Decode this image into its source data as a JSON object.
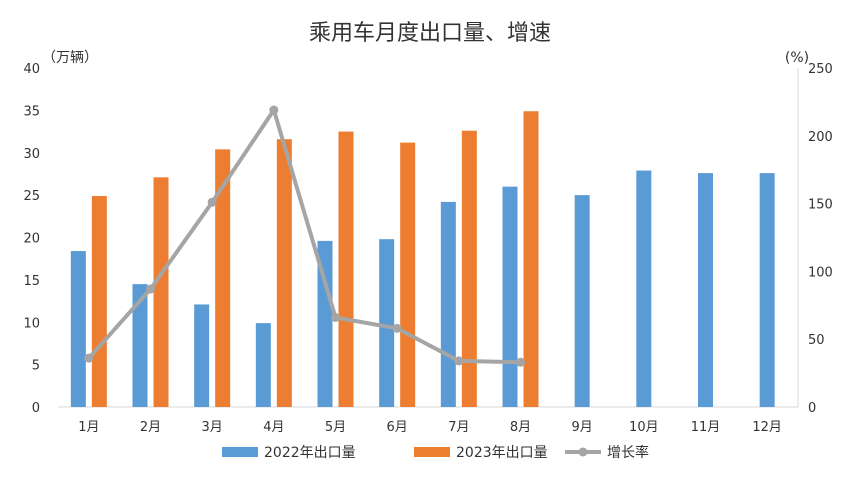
{
  "chart_data": {
    "type": "bar",
    "title": "乘用车月度出口量、增速",
    "y_left_unit": "（万辆）",
    "y_right_unit": "(%)",
    "categories": [
      "1月",
      "2月",
      "3月",
      "4月",
      "5月",
      "6月",
      "7月",
      "8月",
      "9月",
      "10月",
      "11月",
      "12月"
    ],
    "y_left_lim": [
      0,
      40
    ],
    "y_left_ticks": [
      "0",
      "5",
      "10",
      "15",
      "20",
      "25",
      "30",
      "35",
      "40"
    ],
    "y_right_lim": [
      0,
      250
    ],
    "y_right_ticks": [
      "0",
      "50",
      "100",
      "150",
      "200",
      "250"
    ],
    "series": [
      {
        "name": "2022年出口量",
        "type": "bar",
        "axis": "left",
        "color": "#5B9BD5",
        "values": [
          18.4,
          14.5,
          12.1,
          9.9,
          19.6,
          19.8,
          24.2,
          26.0,
          25.0,
          27.9,
          27.6,
          27.6
        ]
      },
      {
        "name": "2023年出口量",
        "type": "bar",
        "axis": "left",
        "color": "#ED7D31",
        "values": [
          24.9,
          27.1,
          30.4,
          31.6,
          32.5,
          31.2,
          32.6,
          34.9,
          null,
          null,
          null,
          null
        ]
      },
      {
        "name": "增长率",
        "type": "line",
        "axis": "right",
        "color": "#A5A5A5",
        "values": [
          36,
          87,
          151,
          219,
          66,
          58,
          34,
          33,
          null,
          null,
          null,
          null
        ]
      }
    ],
    "grid": false,
    "legend_position": "bottom"
  }
}
